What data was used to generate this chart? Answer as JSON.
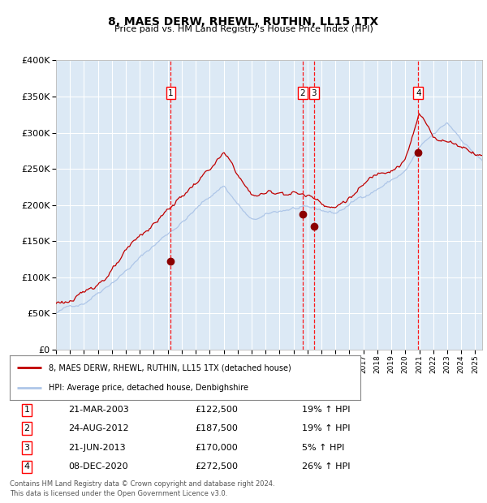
{
  "title": "8, MAES DERW, RHEWL, RUTHIN, LL15 1TX",
  "subtitle": "Price paid vs. HM Land Registry's House Price Index (HPI)",
  "legend_line1": "8, MAES DERW, RHEWL, RUTHIN, LL15 1TX (detached house)",
  "legend_line2": "HPI: Average price, detached house, Denbighshire",
  "footnote1": "Contains HM Land Registry data © Crown copyright and database right 2024.",
  "footnote2": "This data is licensed under the Open Government Licence v3.0.",
  "transactions": [
    {
      "num": 1,
      "date": "21-MAR-2003",
      "price": 122500,
      "pct": "19%",
      "dir": "↑",
      "x_year": 2003.22
    },
    {
      "num": 2,
      "date": "24-AUG-2012",
      "price": 187500,
      "pct": "19%",
      "dir": "↑",
      "x_year": 2012.65
    },
    {
      "num": 3,
      "date": "21-JUN-2013",
      "price": 170000,
      "pct": "5%",
      "dir": "↑",
      "x_year": 2013.47
    },
    {
      "num": 4,
      "date": "08-DEC-2020",
      "price": 272500,
      "pct": "26%",
      "dir": "↑",
      "x_year": 2020.93
    }
  ],
  "hpi_color": "#aec6e8",
  "price_color": "#c00000",
  "dot_color": "#8b0000",
  "vline_color": "#ff0000",
  "background_color": "#dce9f5",
  "grid_color": "#ffffff",
  "ylim": [
    0,
    400000
  ],
  "xlim_start": 1995.0,
  "xlim_end": 2025.5
}
